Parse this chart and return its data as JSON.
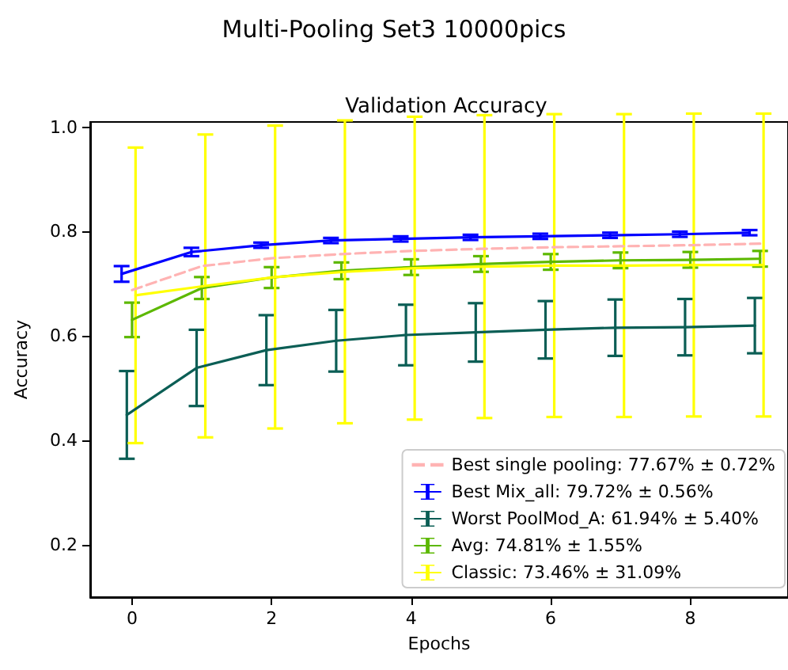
{
  "chart_data": {
    "type": "line",
    "title": "Multi-Pooling Set3 10000pics",
    "subtitle": "Validation Accuracy",
    "xlabel": "Epochs",
    "ylabel": "Accuracy",
    "x": [
      0,
      1,
      2,
      3,
      4,
      5,
      6,
      7,
      8,
      9
    ],
    "series": [
      {
        "name": "Best single pooling: 77.67% ± 0.72%",
        "color": "#ffb3b3",
        "line_style": "dashed",
        "values": [
          0.688,
          0.734,
          0.749,
          0.757,
          0.763,
          0.767,
          0.77,
          0.772,
          0.774,
          0.777
        ]
      },
      {
        "name": "Best Mix_all: 79.72% ± 0.56%",
        "color": "#0000ff",
        "x": [
          -0.15,
          0.85,
          1.85,
          2.85,
          3.85,
          4.85,
          5.85,
          6.85,
          7.85,
          8.85
        ],
        "values": [
          0.719,
          0.761,
          0.774,
          0.783,
          0.786,
          0.789,
          0.791,
          0.793,
          0.795,
          0.798
        ],
        "errors": [
          0.015,
          0.008,
          0.005,
          0.005,
          0.005,
          0.005,
          0.005,
          0.005,
          0.005,
          0.005
        ]
      },
      {
        "name": "Worst PoolMod_A: 61.94% ± 5.40%",
        "color": "#0b5e55",
        "x": [
          -0.075,
          0.925,
          1.925,
          2.925,
          3.925,
          4.925,
          5.925,
          6.925,
          7.925,
          8.925
        ],
        "values": [
          0.449,
          0.539,
          0.573,
          0.591,
          0.602,
          0.607,
          0.612,
          0.616,
          0.617,
          0.62
        ],
        "errors": [
          0.084,
          0.073,
          0.067,
          0.059,
          0.058,
          0.056,
          0.055,
          0.054,
          0.054,
          0.053
        ]
      },
      {
        "name": "Avg: 74.81% ± 1.55%",
        "color": "#5cb800",
        "values": [
          0.631,
          0.692,
          0.712,
          0.725,
          0.732,
          0.738,
          0.742,
          0.745,
          0.746,
          0.748
        ],
        "errors": [
          0.033,
          0.021,
          0.02,
          0.016,
          0.015,
          0.015,
          0.015,
          0.015,
          0.015,
          0.015
        ]
      },
      {
        "name": "Classic: 73.46% ± 31.09%",
        "color": "#ffff00",
        "x": [
          0.05,
          1.05,
          2.05,
          3.05,
          4.05,
          5.05,
          6.05,
          7.05,
          8.05,
          9.05
        ],
        "values": [
          0.678,
          0.696,
          0.713,
          0.723,
          0.73,
          0.733,
          0.735,
          0.735,
          0.736,
          0.736
        ],
        "errors": [
          0.283,
          0.29,
          0.29,
          0.29,
          0.29,
          0.29,
          0.29,
          0.29,
          0.29,
          0.29
        ]
      }
    ],
    "xlim": [
      -0.6,
      9.4
    ],
    "ylim": [
      0.1,
      1.01
    ],
    "xticks": [
      0,
      2,
      4,
      6,
      8
    ],
    "yticks": [
      {
        "value": 0.2,
        "label": "0.2"
      },
      {
        "value": 0.4,
        "label": "0.4"
      },
      {
        "value": 0.6,
        "label": "0.6"
      },
      {
        "value": 0.8,
        "label": "0.8"
      },
      {
        "value": 1.0,
        "label": "1.0"
      }
    ],
    "legend": "bottom right",
    "grid": false,
    "marker": "none",
    "line_style": "solid"
  }
}
